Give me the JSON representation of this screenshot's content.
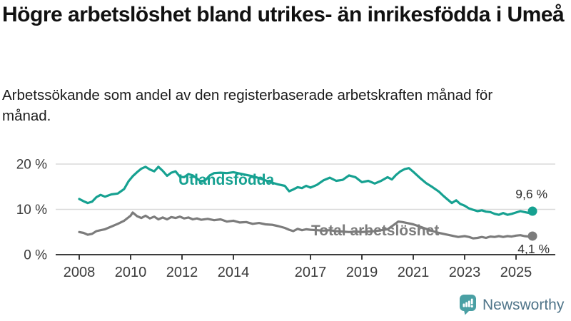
{
  "header": {
    "title": "Högre arbetslöshet bland utrikes- än inrikesfödda i Umeå",
    "subtitle": "Arbetssökande som andel av den registerbaserade arbetskraften månad för månad."
  },
  "branding": {
    "logo_text": "Newsworthy",
    "logo_icon": "bar-chart-speech-bubble-icon",
    "icon_color": "#4aa0a4",
    "text_color": "#50758a"
  },
  "chart_data": {
    "type": "line",
    "title": "Högre arbetslöshet bland utrikes- än inrikesfödda i Umeå",
    "subtitle": "Arbetssökande som andel av den registerbaserade arbetskraften månad för månad.",
    "xlabel": "",
    "ylabel": "",
    "unit": "%",
    "grid": true,
    "legend_position": "inline-labels",
    "x_axis": {
      "range": [
        2007.4,
        2026.3
      ],
      "ticks": [
        2008,
        2010,
        2012,
        2014,
        2017,
        2019,
        2021,
        2023,
        2025
      ]
    },
    "y_axis": {
      "range": [
        0,
        22
      ],
      "ticks": [
        {
          "value": 0,
          "label": "0 %"
        },
        {
          "value": 10,
          "label": "10 %"
        },
        {
          "value": 20,
          "label": "20 %"
        }
      ]
    },
    "series": [
      {
        "id": "utlandsfodda",
        "name": "Utlandsfödda",
        "color": "#16a191",
        "end_value": 9.6,
        "end_value_label": "9,6 %",
        "points": [
          [
            2008.0,
            12.3
          ],
          [
            2008.17,
            11.8
          ],
          [
            2008.33,
            11.4
          ],
          [
            2008.5,
            11.7
          ],
          [
            2008.67,
            12.7
          ],
          [
            2008.83,
            13.2
          ],
          [
            2009.0,
            12.8
          ],
          [
            2009.25,
            13.3
          ],
          [
            2009.5,
            13.5
          ],
          [
            2009.75,
            14.5
          ],
          [
            2009.92,
            16.2
          ],
          [
            2010.08,
            17.3
          ],
          [
            2010.25,
            18.2
          ],
          [
            2010.42,
            19.0
          ],
          [
            2010.58,
            19.4
          ],
          [
            2010.75,
            18.8
          ],
          [
            2010.92,
            18.4
          ],
          [
            2011.08,
            19.4
          ],
          [
            2011.25,
            18.5
          ],
          [
            2011.42,
            17.4
          ],
          [
            2011.58,
            18.1
          ],
          [
            2011.75,
            18.4
          ],
          [
            2011.92,
            17.2
          ],
          [
            2012.08,
            17.1
          ],
          [
            2012.25,
            17.8
          ],
          [
            2012.42,
            17.5
          ],
          [
            2012.58,
            16.8
          ],
          [
            2012.75,
            16.1
          ],
          [
            2012.92,
            16.5
          ],
          [
            2013.08,
            17.5
          ],
          [
            2013.25,
            18.0
          ],
          [
            2013.5,
            18.1
          ],
          [
            2013.75,
            18.0
          ],
          [
            2014.0,
            18.2
          ],
          [
            2014.25,
            17.9
          ],
          [
            2014.5,
            17.6
          ],
          [
            2014.75,
            17.3
          ],
          [
            2015.0,
            16.9
          ],
          [
            2015.25,
            16.4
          ],
          [
            2015.5,
            15.9
          ],
          [
            2015.75,
            15.5
          ],
          [
            2016.0,
            15.2
          ],
          [
            2016.17,
            14.0
          ],
          [
            2016.33,
            14.4
          ],
          [
            2016.5,
            14.9
          ],
          [
            2016.67,
            14.7
          ],
          [
            2016.83,
            15.2
          ],
          [
            2017.0,
            14.8
          ],
          [
            2017.25,
            15.4
          ],
          [
            2017.5,
            16.4
          ],
          [
            2017.75,
            17.0
          ],
          [
            2018.0,
            16.3
          ],
          [
            2018.25,
            16.5
          ],
          [
            2018.5,
            17.5
          ],
          [
            2018.75,
            17.1
          ],
          [
            2019.0,
            16.0
          ],
          [
            2019.25,
            16.3
          ],
          [
            2019.5,
            15.7
          ],
          [
            2019.75,
            16.3
          ],
          [
            2020.0,
            17.1
          ],
          [
            2020.17,
            16.6
          ],
          [
            2020.33,
            17.6
          ],
          [
            2020.5,
            18.4
          ],
          [
            2020.67,
            18.9
          ],
          [
            2020.83,
            19.1
          ],
          [
            2021.0,
            18.3
          ],
          [
            2021.25,
            17.0
          ],
          [
            2021.5,
            15.8
          ],
          [
            2021.75,
            14.9
          ],
          [
            2022.0,
            13.9
          ],
          [
            2022.17,
            13.0
          ],
          [
            2022.33,
            12.2
          ],
          [
            2022.5,
            11.4
          ],
          [
            2022.67,
            12.0
          ],
          [
            2022.83,
            11.2
          ],
          [
            2023.0,
            10.8
          ],
          [
            2023.17,
            10.2
          ],
          [
            2023.33,
            9.9
          ],
          [
            2023.5,
            9.6
          ],
          [
            2023.67,
            9.8
          ],
          [
            2023.83,
            9.5
          ],
          [
            2024.0,
            9.4
          ],
          [
            2024.17,
            9.0
          ],
          [
            2024.33,
            8.8
          ],
          [
            2024.5,
            9.2
          ],
          [
            2024.67,
            8.8
          ],
          [
            2024.83,
            9.0
          ],
          [
            2025.0,
            9.3
          ],
          [
            2025.17,
            9.6
          ],
          [
            2025.33,
            9.4
          ],
          [
            2025.5,
            9.2
          ],
          [
            2025.64,
            9.6
          ]
        ]
      },
      {
        "id": "total-arbetsloshet",
        "name": "Total arbetslöshet",
        "color": "#7c7c7c",
        "end_value": 4.1,
        "end_value_label": "4,1 %",
        "points": [
          [
            2008.0,
            5.0
          ],
          [
            2008.17,
            4.8
          ],
          [
            2008.33,
            4.4
          ],
          [
            2008.5,
            4.6
          ],
          [
            2008.67,
            5.2
          ],
          [
            2008.83,
            5.4
          ],
          [
            2009.0,
            5.6
          ],
          [
            2009.25,
            6.2
          ],
          [
            2009.5,
            6.8
          ],
          [
            2009.75,
            7.5
          ],
          [
            2010.0,
            8.6
          ],
          [
            2010.08,
            9.3
          ],
          [
            2010.25,
            8.5
          ],
          [
            2010.42,
            8.1
          ],
          [
            2010.58,
            8.6
          ],
          [
            2010.75,
            8.0
          ],
          [
            2010.92,
            8.4
          ],
          [
            2011.08,
            7.8
          ],
          [
            2011.25,
            8.2
          ],
          [
            2011.42,
            7.8
          ],
          [
            2011.58,
            8.3
          ],
          [
            2011.75,
            8.1
          ],
          [
            2011.92,
            8.4
          ],
          [
            2012.08,
            8.0
          ],
          [
            2012.25,
            8.2
          ],
          [
            2012.42,
            7.8
          ],
          [
            2012.58,
            8.0
          ],
          [
            2012.75,
            7.7
          ],
          [
            2013.0,
            7.9
          ],
          [
            2013.25,
            7.6
          ],
          [
            2013.5,
            7.8
          ],
          [
            2013.75,
            7.3
          ],
          [
            2014.0,
            7.5
          ],
          [
            2014.25,
            7.1
          ],
          [
            2014.5,
            7.2
          ],
          [
            2014.75,
            6.8
          ],
          [
            2015.0,
            7.0
          ],
          [
            2015.25,
            6.7
          ],
          [
            2015.5,
            6.6
          ],
          [
            2015.75,
            6.3
          ],
          [
            2016.0,
            5.9
          ],
          [
            2016.17,
            5.5
          ],
          [
            2016.33,
            5.2
          ],
          [
            2016.5,
            5.7
          ],
          [
            2016.67,
            5.4
          ],
          [
            2016.83,
            5.6
          ],
          [
            2017.0,
            5.5
          ],
          [
            2017.25,
            5.4
          ],
          [
            2017.5,
            5.3
          ],
          [
            2017.75,
            5.4
          ],
          [
            2018.0,
            5.2
          ],
          [
            2018.25,
            5.1
          ],
          [
            2018.5,
            5.0
          ],
          [
            2018.75,
            5.1
          ],
          [
            2019.0,
            5.0
          ],
          [
            2019.25,
            5.1
          ],
          [
            2019.5,
            5.2
          ],
          [
            2019.75,
            5.4
          ],
          [
            2020.0,
            5.6
          ],
          [
            2020.25,
            6.6
          ],
          [
            2020.42,
            7.3
          ],
          [
            2020.58,
            7.2
          ],
          [
            2020.75,
            7.0
          ],
          [
            2021.0,
            6.7
          ],
          [
            2021.25,
            6.2
          ],
          [
            2021.5,
            5.7
          ],
          [
            2021.75,
            5.2
          ],
          [
            2022.0,
            4.8
          ],
          [
            2022.25,
            4.5
          ],
          [
            2022.5,
            4.2
          ],
          [
            2022.75,
            3.9
          ],
          [
            2023.0,
            4.1
          ],
          [
            2023.17,
            3.9
          ],
          [
            2023.33,
            3.6
          ],
          [
            2023.5,
            3.7
          ],
          [
            2023.67,
            3.9
          ],
          [
            2023.83,
            3.7
          ],
          [
            2024.0,
            4.0
          ],
          [
            2024.17,
            3.9
          ],
          [
            2024.33,
            4.1
          ],
          [
            2024.5,
            3.9
          ],
          [
            2024.67,
            4.1
          ],
          [
            2024.83,
            4.0
          ],
          [
            2025.0,
            4.2
          ],
          [
            2025.17,
            4.3
          ],
          [
            2025.33,
            4.1
          ],
          [
            2025.5,
            4.0
          ],
          [
            2025.64,
            4.1
          ]
        ]
      }
    ]
  }
}
